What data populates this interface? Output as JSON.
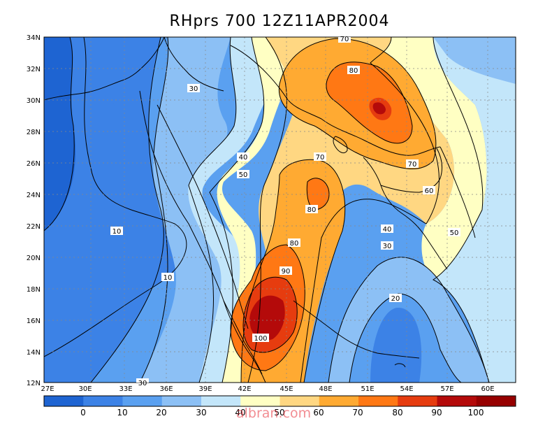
{
  "title": "RHprs 700 12Z11APR2004",
  "lat_labels": [
    "12N",
    "14N",
    "16N",
    "18N",
    "20N",
    "22N",
    "24N",
    "26N",
    "28N",
    "30N",
    "32N",
    "34N"
  ],
  "lon_labels": [
    "27E",
    "30E",
    "33E",
    "36E",
    "39E",
    "42E",
    "45E",
    "48E",
    "51E",
    "54E",
    "57E",
    "60E"
  ],
  "contour_labels": [
    "10",
    "10",
    "20",
    "30",
    "30",
    "30",
    "40",
    "40",
    "50",
    "50",
    "60",
    "70",
    "70",
    "70",
    "80",
    "80",
    "80",
    "90",
    "100"
  ],
  "colorbar": {
    "ticks": [
      "0",
      "10",
      "20",
      "30",
      "40",
      "50",
      "60",
      "70",
      "80",
      "90",
      "100"
    ],
    "colors": [
      "#1e64d2",
      "#3c82e6",
      "#5aa0f0",
      "#8cc0f5",
      "#c3e6fa",
      "#ffffc3",
      "#ffd782",
      "#ffaa32",
      "#ff7814",
      "#e63c0f",
      "#b40a0a",
      "#960000"
    ]
  },
  "watermark": "albran.com",
  "colors": {
    "background": "#ffffff",
    "land_outline": "#000000"
  }
}
